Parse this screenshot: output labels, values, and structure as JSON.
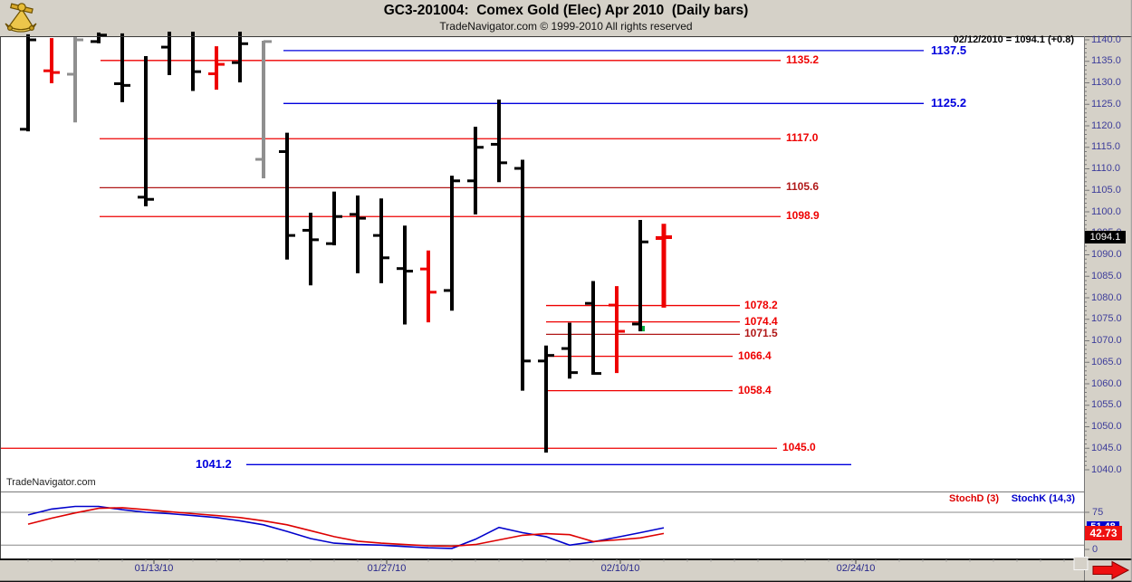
{
  "header": {
    "title": "GC3-201004:  Comex Gold (Elec) Apr 2010  (Daily bars)",
    "subtitle": "TradeNavigator.com © 1999-2010 All rights reserved",
    "quote": "02/12/2010 = 1094.1 (+0.8)",
    "logo_icon": "sextant-logo"
  },
  "watermark": "TradeNavigator.com",
  "colors": {
    "panel_bg": "#d5d1c8",
    "chart_bg": "#ffffff",
    "bar_black": "#000000",
    "bar_red": "#ee0000",
    "bar_gray": "#8f8f8f",
    "level_red": "#ee0000",
    "level_darkred": "#b01818",
    "level_blue": "#0000dd",
    "axis_text": "#3c3c9a",
    "date_text": "#28288c",
    "stoch_k": "#0000cc",
    "stoch_d": "#dd0000",
    "grid_gray": "#888888",
    "last_badge_bg": "#000000",
    "k_badge_bg": "#0000d0",
    "d_badge_bg": "#ee1111",
    "marker_green": "#00a83c",
    "arrow_red": "#ee1010"
  },
  "price_axis": {
    "max": 1140,
    "min": 1040,
    "step": 5,
    "labels": [
      "1140.0",
      "1135.0",
      "1130.0",
      "1125.0",
      "1120.0",
      "1115.0",
      "1110.0",
      "1105.0",
      "1100.0",
      "1095.0",
      "1090.0",
      "1085.0",
      "1080.0",
      "1075.0",
      "1070.0",
      "1065.0",
      "1060.0",
      "1055.0",
      "1050.0",
      "1045.0",
      "1040.0"
    ],
    "last_price": "1094.1"
  },
  "x_axis": {
    "labels": [
      {
        "text": "01/13/10",
        "x": 170
      },
      {
        "text": "01/27/10",
        "x": 427
      },
      {
        "text": "02/10/10",
        "x": 685
      },
      {
        "text": "02/24/10",
        "x": 945
      }
    ]
  },
  "stoch_panel": {
    "d_label": "StochD (3)",
    "k_label": "StochK (14,3)",
    "axis_hi": "75",
    "axis_lo": "0",
    "k_value": "51.48",
    "d_value": "42.73"
  },
  "chart_data": [
    {
      "type": "ohlc_bars",
      "title": "GC3-201004: Comex Gold (Elec) Apr 2010 (Daily bars)",
      "ylabel": "Price",
      "ylim": [
        1040,
        1140
      ],
      "x_tick_labels": [
        "01/13/10",
        "01/27/10",
        "02/10/10",
        "02/24/10"
      ],
      "bars": [
        {
          "o": 1119.2,
          "h": 1141.3,
          "l": 1118.7,
          "c": 1140.0,
          "color": "black"
        },
        {
          "o": 1132.8,
          "h": 1140.4,
          "l": 1129.9,
          "c": 1132.4,
          "color": "red"
        },
        {
          "o": 1132.0,
          "h": 1140.6,
          "l": 1120.8,
          "c": 1140.0,
          "color": "gray"
        },
        {
          "o": 1139.6,
          "h": 1141.7,
          "l": 1139.2,
          "c": 1141.1,
          "color": "black"
        },
        {
          "o": 1129.8,
          "h": 1141.5,
          "l": 1125.5,
          "c": 1129.4,
          "color": "black"
        },
        {
          "o": 1103.4,
          "h": 1136.2,
          "l": 1101.3,
          "c": 1102.9,
          "color": "black"
        },
        {
          "o": 1138.3,
          "h": 1141.9,
          "l": 1131.8,
          "c": null,
          "color": "black"
        },
        {
          "o": null,
          "h": 1141.9,
          "l": 1128.1,
          "c": 1132.6,
          "color": "black"
        },
        {
          "o": 1132.1,
          "h": 1138.5,
          "l": 1128.4,
          "c": 1134.3,
          "color": "red"
        },
        {
          "o": 1134.7,
          "h": 1141.9,
          "l": 1130.1,
          "c": 1139.1,
          "color": "black"
        },
        {
          "o": 1112.2,
          "h": 1139.8,
          "l": 1107.8,
          "c": 1139.6,
          "color": "gray"
        },
        {
          "o": 1114.0,
          "h": 1118.4,
          "l": 1088.9,
          "c": 1094.5,
          "color": "black"
        },
        {
          "o": 1095.7,
          "h": 1099.8,
          "l": 1082.9,
          "c": 1093.5,
          "color": "black"
        },
        {
          "o": 1092.6,
          "h": 1104.7,
          "l": 1092.2,
          "c": 1098.9,
          "color": "black"
        },
        {
          "o": 1099.4,
          "h": 1103.8,
          "l": 1085.7,
          "c": 1098.5,
          "color": "black"
        },
        {
          "o": 1094.5,
          "h": 1103.1,
          "l": 1083.4,
          "c": 1089.3,
          "color": "black"
        },
        {
          "o": 1086.8,
          "h": 1096.8,
          "l": 1073.8,
          "c": 1086.2,
          "color": "black"
        },
        {
          "o": 1086.7,
          "h": 1091.0,
          "l": 1074.3,
          "c": 1081.3,
          "color": "red"
        },
        {
          "o": 1081.7,
          "h": 1108.4,
          "l": 1077.0,
          "c": 1107.2,
          "color": "black"
        },
        {
          "o": 1107.2,
          "h": 1119.8,
          "l": 1099.4,
          "c": 1115.0,
          "color": "black"
        },
        {
          "o": 1115.7,
          "h": 1126.1,
          "l": 1106.9,
          "c": 1111.4,
          "color": "black"
        },
        {
          "o": 1110.1,
          "h": 1112.1,
          "l": 1058.4,
          "c": 1065.3,
          "color": "black"
        },
        {
          "o": 1065.3,
          "h": 1068.9,
          "l": 1044.0,
          "c": 1066.6,
          "color": "black"
        },
        {
          "o": 1068.2,
          "h": 1074.2,
          "l": 1061.2,
          "c": 1062.6,
          "color": "black"
        },
        {
          "o": 1078.7,
          "h": 1083.9,
          "l": 1062.1,
          "c": 1062.4,
          "color": "black"
        },
        {
          "o": 1078.3,
          "h": 1082.7,
          "l": 1062.5,
          "c": 1072.2,
          "color": "red"
        },
        {
          "o": 1073.9,
          "h": 1098.1,
          "l": 1072.2,
          "c": 1093.0,
          "color": "black",
          "marker": {
            "shape": "green-square",
            "price": 1072.2
          }
        },
        {
          "o": 1093.9,
          "h": 1097.2,
          "l": 1077.7,
          "c": 1094.1,
          "color": "red",
          "emph": true
        }
      ],
      "levels": [
        {
          "value": 1135.2,
          "label": "1135.2",
          "color": "red",
          "x1": 111,
          "x2": 862,
          "label_x": 868
        },
        {
          "value": 1117.0,
          "label": "1117.0",
          "color": "red",
          "x1": 110,
          "x2": 862,
          "label_x": 868
        },
        {
          "value": 1105.6,
          "label": "1105.6",
          "color": "darkred",
          "x1": 110,
          "x2": 862,
          "label_x": 868
        },
        {
          "value": 1098.9,
          "label": "1098.9",
          "color": "red",
          "x1": 110,
          "x2": 862,
          "label_x": 868
        },
        {
          "value": 1078.2,
          "label": "1078.2",
          "color": "red",
          "x1": 603,
          "x2": 817,
          "label_x": 822
        },
        {
          "value": 1074.4,
          "label": "1074.4",
          "color": "red",
          "x1": 603,
          "x2": 817,
          "label_x": 822
        },
        {
          "value": 1071.5,
          "label": "1071.5",
          "color": "darkred",
          "x1": 603,
          "x2": 817,
          "label_x": 822
        },
        {
          "value": 1066.4,
          "label": "1066.4",
          "color": "red",
          "x1": 602,
          "x2": 809,
          "label_x": 815
        },
        {
          "value": 1058.4,
          "label": "1058.4",
          "color": "red",
          "x1": 602,
          "x2": 809,
          "label_x": 815
        },
        {
          "value": 1045.0,
          "label": "1045.0",
          "color": "red",
          "x1": 0,
          "x2": 858,
          "label_x": 864
        },
        {
          "value": 1137.5,
          "label": "1137.5",
          "color": "blue",
          "x1": 313,
          "x2": 1020,
          "label_x": 1028
        },
        {
          "value": 1125.2,
          "label": "1125.2",
          "color": "blue",
          "x1": 313,
          "x2": 1020,
          "label_x": 1028
        },
        {
          "value": 1041.2,
          "label": "1041.2",
          "color": "blue",
          "x1": 272,
          "x2": 940,
          "label_x": 216
        }
      ]
    },
    {
      "type": "line",
      "title": "Stochastics",
      "ylim": [
        0,
        100
      ],
      "guides": [
        75,
        25
      ],
      "series": [
        {
          "name": "StochK (14,3)",
          "color": "#0000cc",
          "values": [
            71,
            80,
            84,
            84,
            79,
            75,
            73,
            70,
            67,
            62,
            56,
            46,
            35,
            28,
            26,
            25,
            23,
            21,
            20,
            34,
            52,
            44,
            38,
            25,
            30,
            37,
            44,
            51.48
          ]
        },
        {
          "name": "StochD (3)",
          "color": "#dd0000",
          "values": [
            57,
            66,
            74,
            81,
            82,
            79,
            76,
            73,
            70,
            67,
            62,
            56,
            47,
            38,
            31,
            28,
            26,
            24,
            23.5,
            26,
            33,
            40,
            42.5,
            41,
            30.5,
            33,
            36,
            42.73
          ]
        }
      ],
      "last_values": {
        "k": 51.48,
        "d": 42.73
      }
    }
  ]
}
